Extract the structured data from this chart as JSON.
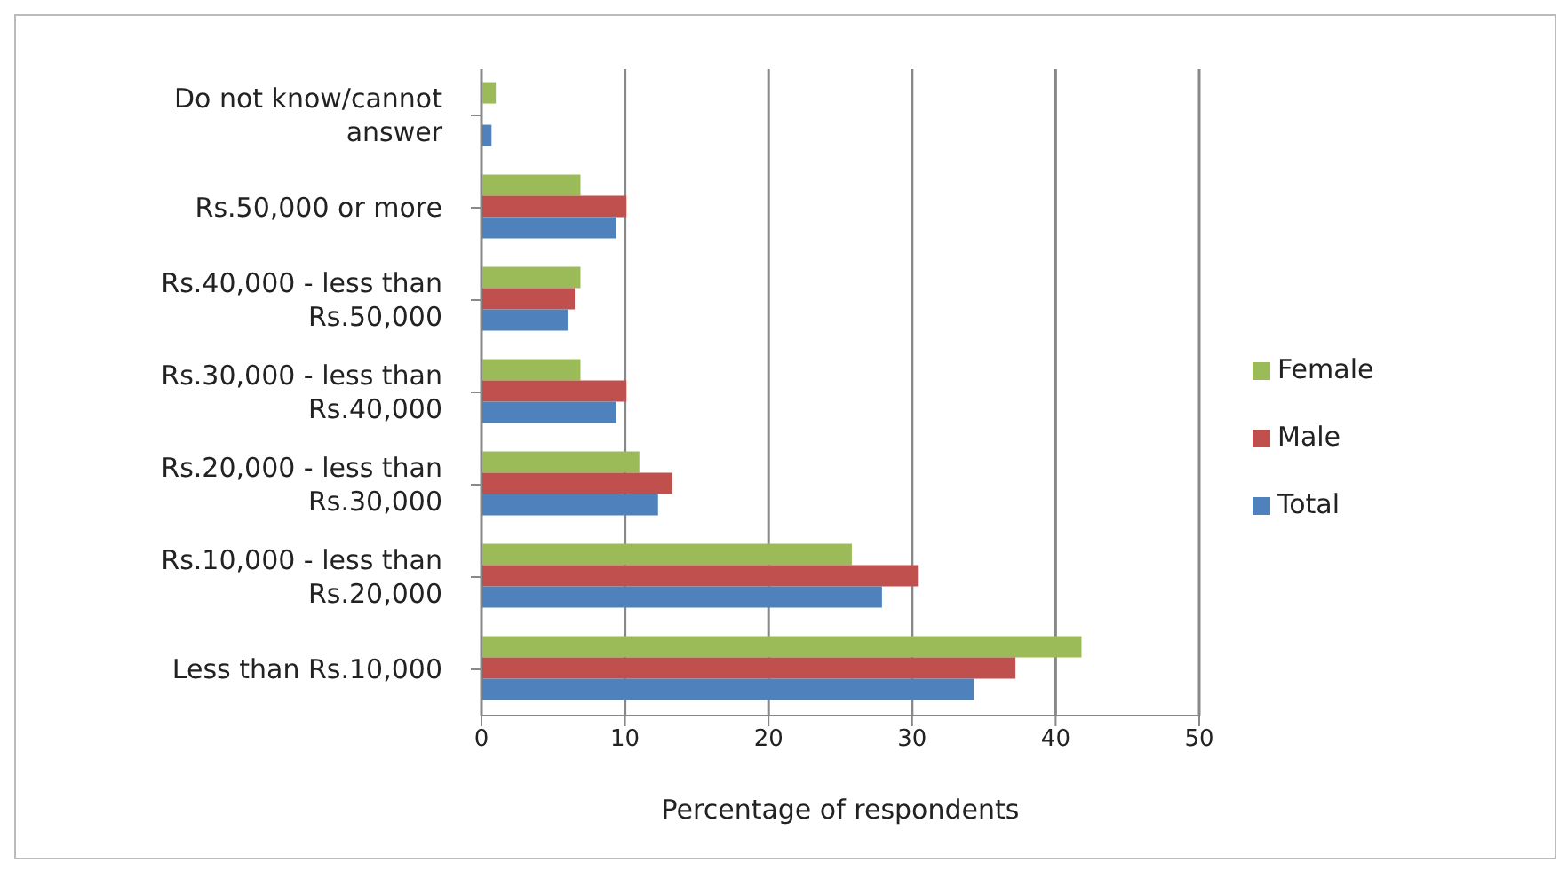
{
  "chart_data": {
    "type": "bar",
    "orientation": "horizontal",
    "xlabel": "Percentage of respondents",
    "categories": [
      "Do not know/cannot answer",
      "Rs.50,000 or more",
      "Rs.40,000 - less than Rs.50,000",
      "Rs.30,000 - less than Rs.40,000",
      "Rs.20,000 - less than Rs.30,000",
      "Rs.10,000 - less than Rs.20,000",
      "Less than Rs.10,000"
    ],
    "series": [
      {
        "name": "Female",
        "color": "#9bbb59",
        "values": [
          1.0,
          6.9,
          6.9,
          6.9,
          11.0,
          25.8,
          41.8
        ]
      },
      {
        "name": "Male",
        "color": "#c0504d",
        "values": [
          null,
          10.1,
          6.5,
          10.1,
          13.3,
          30.4,
          37.2
        ]
      },
      {
        "name": "Total",
        "color": "#4f81bd",
        "values": [
          0.7,
          9.4,
          6.0,
          9.4,
          12.3,
          27.9,
          34.3
        ]
      }
    ],
    "xlim": [
      0,
      50
    ],
    "xticks": [
      0,
      10,
      20,
      30,
      40,
      50
    ],
    "grid": "x",
    "legend": "right"
  }
}
